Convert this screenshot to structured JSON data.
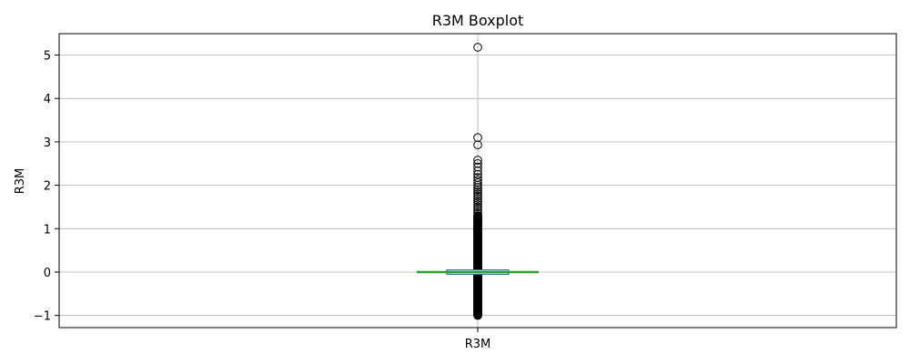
{
  "chart_data": {
    "type": "boxplot",
    "title": "R3M Boxplot",
    "xlabel": "",
    "ylabel": "R3M",
    "categories": [
      "R3M"
    ],
    "ylim": [
      -1.3,
      5.5
    ],
    "yticks": [
      -1,
      0,
      1,
      2,
      3,
      4,
      5
    ],
    "ytick_labels": [
      "−1",
      "0",
      "1",
      "2",
      "3",
      "4",
      "5"
    ],
    "grid": true,
    "box": {
      "q1": -0.05,
      "median": 0.0,
      "q3": 0.05,
      "whisker_low": -0.05,
      "whisker_high": 0.05
    },
    "outliers_sparse": [
      5.18,
      3.1,
      2.93,
      2.58,
      2.5,
      2.42,
      2.33,
      2.25,
      2.18,
      2.12,
      2.06,
      2.0,
      1.95,
      1.9,
      1.85,
      1.8,
      1.75,
      1.7,
      1.65,
      1.6,
      1.55,
      1.5,
      1.45,
      1.4,
      1.35,
      1.3
    ],
    "outliers_dense_ranges": [
      [
        -1.0,
        -0.06
      ],
      [
        0.06,
        1.3
      ]
    ],
    "colors": {
      "median": "#2ca02c",
      "box": "#1f77b4",
      "grid": "#b0b0b0",
      "marker_edge": "#000000"
    }
  }
}
